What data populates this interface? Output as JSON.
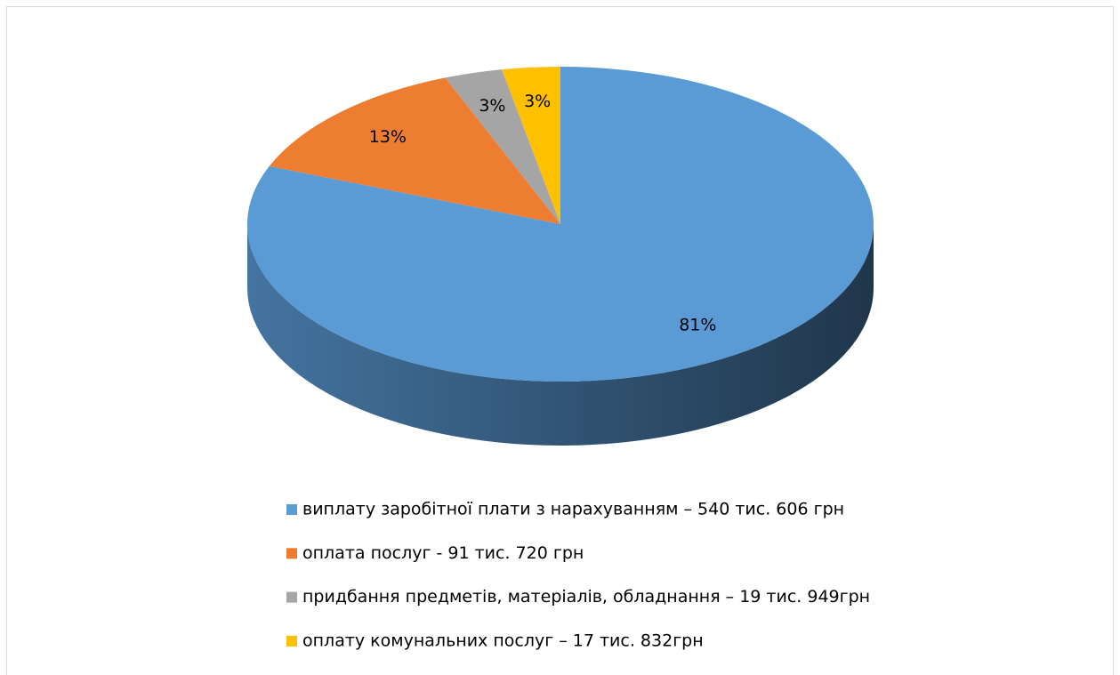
{
  "chart_data": {
    "type": "pie",
    "categories": [
      "виплату заробітної плати з нарахуванням – 540 тис. 606 грн",
      "оплата послуг - 91 тис. 720 грн",
      "придбання предметів, матеріалів, обладнання – 19 тис. 949грн",
      "оплату комунальних послуг – 17 тис. 832грн"
    ],
    "values": [
      81,
      13,
      3,
      3
    ],
    "value_labels": [
      "81%",
      "13%",
      "3%",
      "3%"
    ],
    "colors": [
      "#5b9bd5",
      "#ed7d31",
      "#a5a5a5",
      "#ffc000"
    ],
    "legend": "bottom"
  }
}
